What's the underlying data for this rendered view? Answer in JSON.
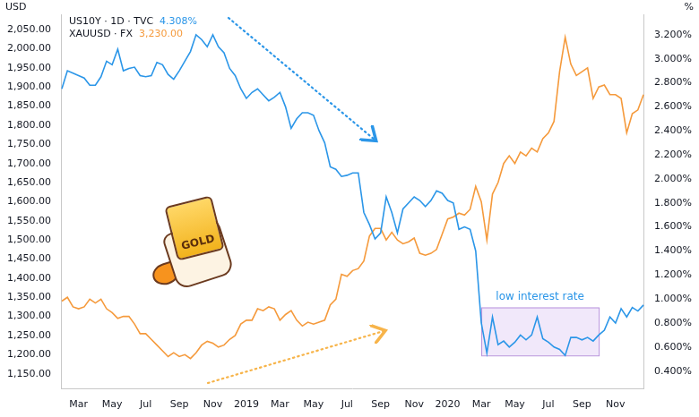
{
  "chart_data": {
    "type": "line",
    "y_label": "USD",
    "y2_label": "%",
    "badge": "GOLD",
    "legend": "top-left",
    "grid": false,
    "categories": [
      null,
      null,
      null,
      "Mar",
      null,
      null,
      null,
      null,
      null,
      "May",
      null,
      null,
      null,
      null,
      null,
      "Jul",
      null,
      null,
      null,
      null,
      null,
      "Sep",
      null,
      null,
      null,
      null,
      null,
      "Nov",
      null,
      null,
      null,
      null,
      null,
      "2019",
      null,
      null,
      null,
      null,
      null,
      "Mar",
      null,
      null,
      null,
      null,
      null,
      "May",
      null,
      null,
      null,
      null,
      null,
      "Jul",
      null,
      null,
      null,
      null,
      null,
      "Sep",
      null,
      null,
      null,
      null,
      null,
      "Nov",
      null,
      null,
      null,
      null,
      null,
      "2020",
      null,
      null,
      null,
      null,
      null,
      "Mar",
      null,
      null,
      null,
      null,
      null,
      "May",
      null,
      null,
      null,
      null,
      null,
      "Jul",
      null,
      null,
      null,
      null,
      null,
      "Sep",
      null,
      null,
      null,
      null,
      null,
      "Nov",
      null,
      null,
      null,
      null,
      null
    ],
    "series": [
      {
        "name": "US10Y · 1D · TVC",
        "header_value": "4.308%",
        "color": "#2b96e8",
        "axis": "y2",
        "values": [
          2.75,
          2.9,
          2.88,
          2.86,
          2.84,
          2.78,
          2.78,
          2.85,
          2.98,
          2.95,
          3.08,
          2.9,
          2.92,
          2.93,
          2.86,
          2.85,
          2.86,
          2.97,
          2.95,
          2.87,
          2.83,
          2.9,
          2.98,
          3.06,
          3.2,
          3.16,
          3.1,
          3.2,
          3.1,
          3.05,
          2.92,
          2.86,
          2.75,
          2.67,
          2.72,
          2.75,
          2.7,
          2.65,
          2.68,
          2.72,
          2.6,
          2.42,
          2.5,
          2.55,
          2.55,
          2.53,
          2.4,
          2.3,
          2.1,
          2.08,
          2.02,
          2.03,
          2.05,
          2.05,
          1.72,
          1.62,
          1.5,
          1.55,
          1.85,
          1.72,
          1.55,
          1.75,
          1.8,
          1.85,
          1.82,
          1.77,
          1.82,
          1.9,
          1.88,
          1.82,
          1.8,
          1.58,
          1.6,
          1.58,
          1.4,
          0.8,
          0.55,
          0.85,
          0.62,
          0.65,
          0.6,
          0.64,
          0.7,
          0.66,
          0.7,
          0.85,
          0.67,
          0.64,
          0.6,
          0.58,
          0.53,
          0.68,
          0.68,
          0.66,
          0.68,
          0.65,
          0.7,
          0.74,
          0.85,
          0.8,
          0.92,
          0.85,
          0.93,
          0.9,
          0.95
        ]
      },
      {
        "name": "XAUUSD · FX",
        "header_value": "3,230.00",
        "color": "#f59a3c",
        "axis": "y",
        "values": [
          1340,
          1350,
          1325,
          1320,
          1325,
          1345,
          1335,
          1345,
          1320,
          1310,
          1295,
          1300,
          1300,
          1280,
          1255,
          1255,
          1240,
          1225,
          1210,
          1195,
          1205,
          1195,
          1200,
          1190,
          1205,
          1225,
          1235,
          1230,
          1220,
          1225,
          1240,
          1250,
          1280,
          1290,
          1290,
          1320,
          1315,
          1325,
          1320,
          1290,
          1305,
          1315,
          1290,
          1275,
          1285,
          1280,
          1285,
          1290,
          1330,
          1345,
          1410,
          1405,
          1420,
          1425,
          1445,
          1510,
          1530,
          1530,
          1500,
          1520,
          1500,
          1490,
          1495,
          1505,
          1465,
          1460,
          1465,
          1475,
          1515,
          1555,
          1560,
          1570,
          1565,
          1580,
          1640,
          1600,
          1500,
          1620,
          1650,
          1700,
          1720,
          1700,
          1730,
          1720,
          1740,
          1730,
          1765,
          1780,
          1810,
          1940,
          2030,
          1960,
          1930,
          1940,
          1950,
          1870,
          1900,
          1905,
          1880,
          1880,
          1870,
          1780,
          1830,
          1840,
          1880
        ]
      }
    ],
    "ylim": [
      1110,
      2090
    ],
    "yticks": [
      {
        "value": 1150,
        "label": "1,150.00"
      },
      {
        "value": 1200,
        "label": "1,200.00"
      },
      {
        "value": 1250,
        "label": "1,250.00"
      },
      {
        "value": 1300,
        "label": "1,300.00"
      },
      {
        "value": 1350,
        "label": "1,350.00"
      },
      {
        "value": 1400,
        "label": "1,400.00"
      },
      {
        "value": 1450,
        "label": "1,450.00"
      },
      {
        "value": 1500,
        "label": "1,500.00"
      },
      {
        "value": 1550,
        "label": "1,550.00"
      },
      {
        "value": 1600,
        "label": "1,600.00"
      },
      {
        "value": 1650,
        "label": "1,650.00"
      },
      {
        "value": 1700,
        "label": "1,700.00"
      },
      {
        "value": 1750,
        "label": "1,750.00"
      },
      {
        "value": 1800,
        "label": "1,800.00"
      },
      {
        "value": 1850,
        "label": "1,850.00"
      },
      {
        "value": 1900,
        "label": "1,900.00"
      },
      {
        "value": 1950,
        "label": "1,950.00"
      },
      {
        "value": 2000,
        "label": "2,000.00"
      },
      {
        "value": 2050,
        "label": "2,050.00"
      }
    ],
    "y2lim": [
      0.25,
      3.37
    ],
    "y2ticks": [
      {
        "value": 0.4,
        "label": "0.400%"
      },
      {
        "value": 0.6,
        "label": "0.600%"
      },
      {
        "value": 0.8,
        "label": "0.800%"
      },
      {
        "value": 1.0,
        "label": "1.000%"
      },
      {
        "value": 1.2,
        "label": "1.200%"
      },
      {
        "value": 1.4,
        "label": "1.400%"
      },
      {
        "value": 1.6,
        "label": "1.600%"
      },
      {
        "value": 1.8,
        "label": "1.800%"
      },
      {
        "value": 2.0,
        "label": "2.000%"
      },
      {
        "value": 2.2,
        "label": "2.200%"
      },
      {
        "value": 2.4,
        "label": "2.400%"
      },
      {
        "value": 2.6,
        "label": "2.600%"
      },
      {
        "value": 2.8,
        "label": "2.800%"
      },
      {
        "value": 3.0,
        "label": "3.000%"
      },
      {
        "value": 3.2,
        "label": "3.200%"
      }
    ],
    "annotations": [
      {
        "text": "low interest rate",
        "from_index": 75,
        "to_index": 96,
        "y2_range": [
          0.53,
          0.93
        ]
      }
    ]
  }
}
